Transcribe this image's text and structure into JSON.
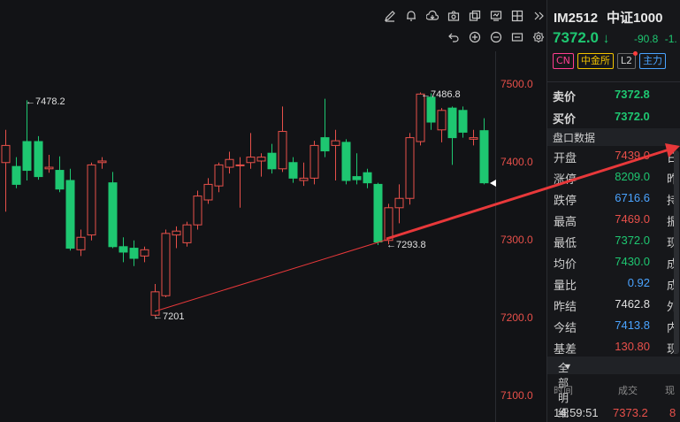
{
  "chart": {
    "y_ticks": [
      "7500.0",
      "7400.0",
      "7300.0",
      "7200.0",
      "7100.0"
    ],
    "annotations": {
      "peak1": "←7478.2",
      "peak2": "←7486.8",
      "low1": "←7201",
      "low2": "←7293.8"
    },
    "colors": {
      "up": "#e8504a",
      "down": "#1ec771",
      "arrow": "#e8383a"
    }
  },
  "toolbar": {
    "icons_top": [
      "pencil-icon",
      "bell-icon",
      "cloud-icon",
      "camera-icon",
      "copy-icon",
      "screen-icon",
      "grid-icon",
      "collapse-icon"
    ],
    "icons_second": [
      "undo-icon",
      "zoom-in-icon",
      "zoom-out-icon",
      "fit-icon",
      "settings-icon"
    ]
  },
  "quote": {
    "code": "IM2512",
    "name": "中证1000",
    "price": "7372.0",
    "price_arrow": "↓",
    "change": "-90.8",
    "change_pct": "-1.",
    "tags": {
      "cn": "CN",
      "exchange": "中金所",
      "l2": "L2",
      "zhuli": "主力"
    },
    "ask_label": "卖价",
    "ask_value": "7372.8",
    "bid_label": "买价",
    "bid_value": "7372.0",
    "section_title": "盘口数据",
    "rows": [
      {
        "label": "开盘",
        "value": "7439.0",
        "right": "日"
      },
      {
        "label": "涨停",
        "value": "8209.0",
        "right": "昨"
      },
      {
        "label": "跌停",
        "value": "6716.6",
        "right": "持"
      },
      {
        "label": "最高",
        "value": "7469.0",
        "right": "振"
      },
      {
        "label": "最低",
        "value": "7372.0",
        "right": "现"
      },
      {
        "label": "均价",
        "value": "7430.0",
        "right": "成"
      },
      {
        "label": "量比",
        "value": "0.92",
        "right": "成"
      },
      {
        "label": "昨结",
        "value": "7462.8",
        "right": "外"
      },
      {
        "label": "今结",
        "value": "7413.8",
        "right": "内"
      },
      {
        "label": "基差",
        "value": "130.80",
        "right": "现"
      }
    ],
    "detail_title": "全部明细",
    "detail_caret": "▾",
    "detail_headers": {
      "time": "时间",
      "deal": "成交",
      "now": "现"
    },
    "detail_rows": [
      {
        "time": "14:59:51",
        "deal": "7373.2",
        "now": "8"
      }
    ]
  }
}
